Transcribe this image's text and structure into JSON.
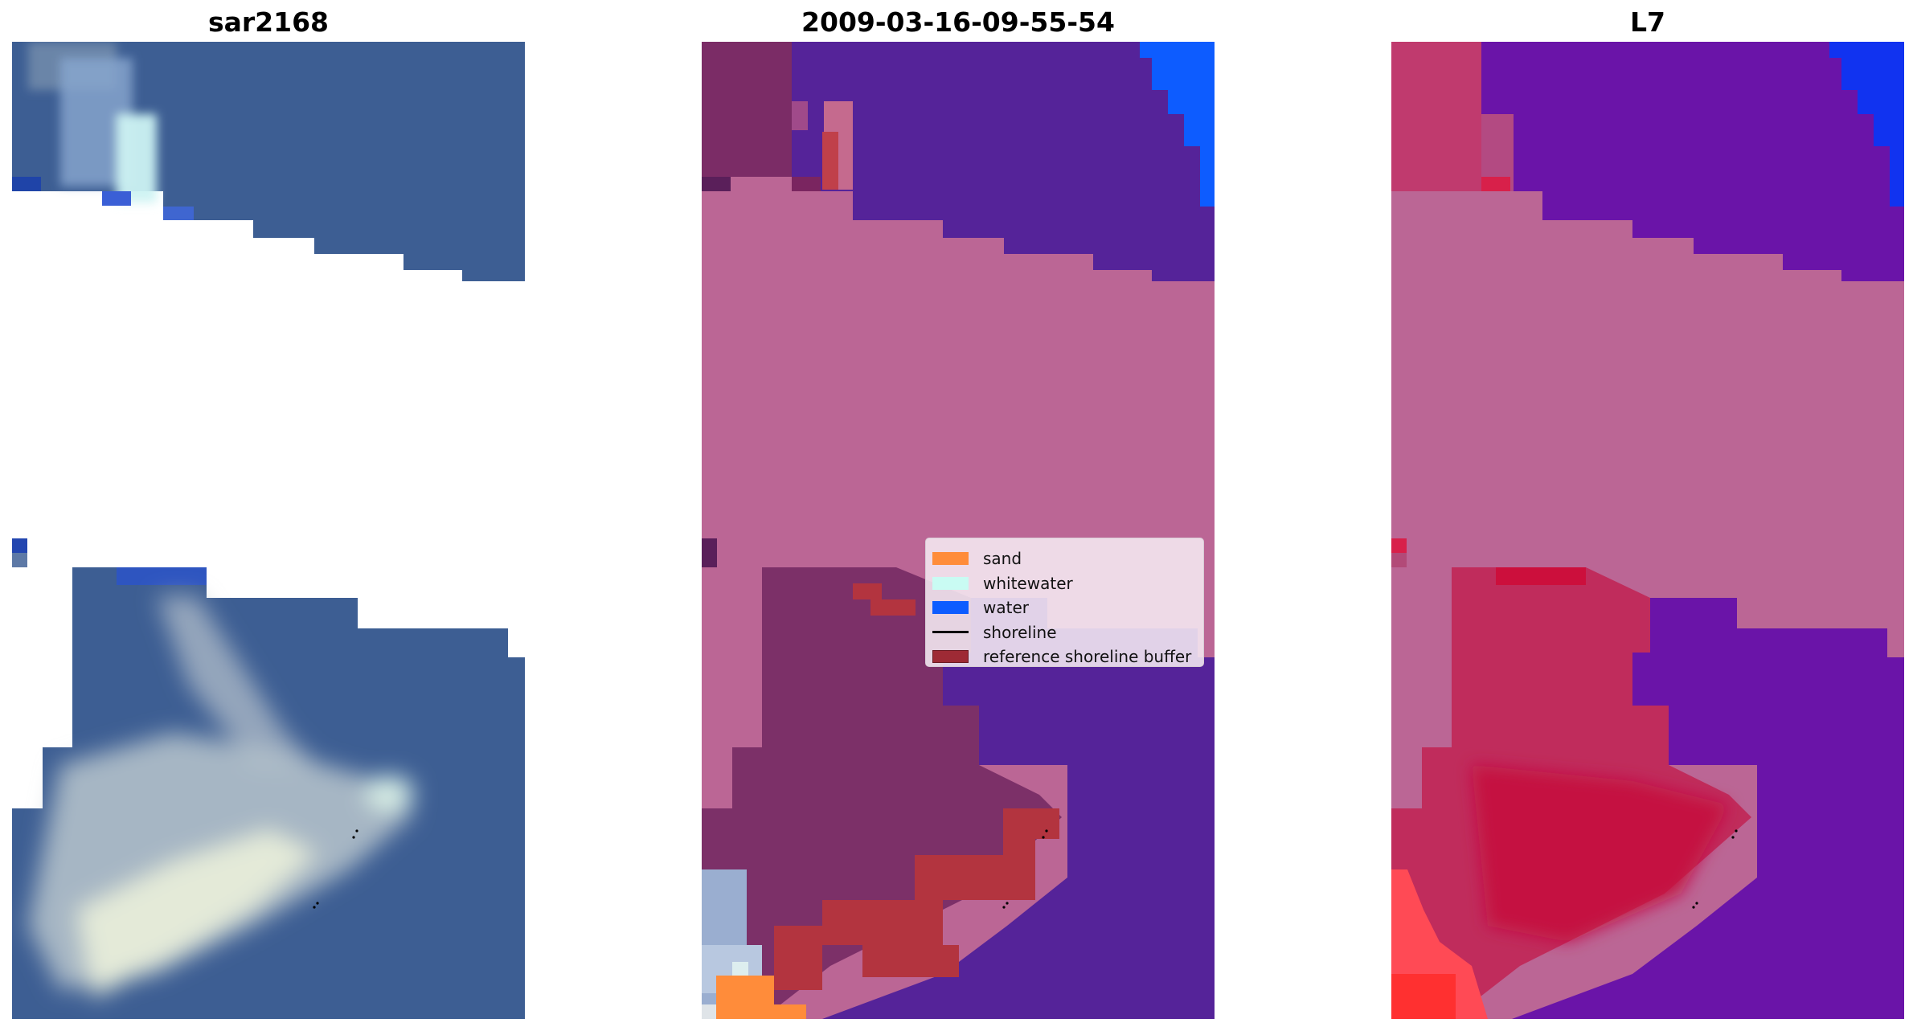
{
  "panels": [
    {
      "title": "sar2168"
    },
    {
      "title": "2009-03-16-09-55-54"
    },
    {
      "title": "L7"
    }
  ],
  "legend": {
    "items": [
      {
        "label": "sand",
        "kind": "patch",
        "color": "#ff8c3a"
      },
      {
        "label": "whitewater",
        "kind": "patch",
        "color": "#c9fbf3"
      },
      {
        "label": "water",
        "kind": "patch",
        "color": "#0d5cff"
      },
      {
        "label": "shoreline",
        "kind": "line",
        "color": "#000000"
      },
      {
        "label": "reference shoreline buffer",
        "kind": "patch",
        "color": "#9e2a35"
      }
    ]
  },
  "colors": {
    "rgb_water": "#3d5e93",
    "class_sand": "#ff8c3a",
    "class_whitewater": "#c9fbf3",
    "class_water": "#0d5cff",
    "class_land": "#bb6695",
    "class_sea": "#552399",
    "class_buffer": "#b3343f",
    "mndwi_high": "#6a14a8",
    "mndwi_low": "#d8204a"
  }
}
